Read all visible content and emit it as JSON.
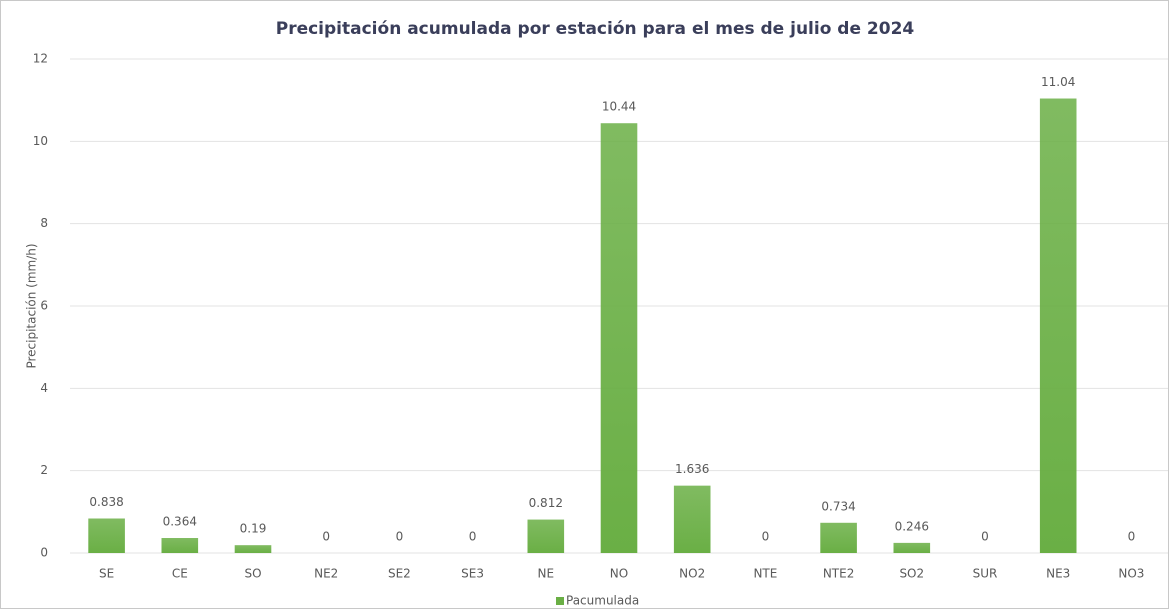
{
  "chart_data": {
    "type": "bar",
    "title": "Precipitación acumulada por estación para el mes de julio de 2024",
    "y_label": "Precipitación (mm/h)",
    "categories": [
      "SE",
      "CE",
      "SO",
      "NE2",
      "SE2",
      "SE3",
      "NE",
      "NO",
      "NO2",
      "NTE",
      "NTE2",
      "SO2",
      "SUR",
      "NE3",
      "NO3"
    ],
    "series": [
      {
        "name": "Pacumulada",
        "color": "#6aaf45",
        "values": [
          0.838,
          0.364,
          0.19,
          0,
          0,
          0,
          0.812,
          10.44,
          1.636,
          0,
          0.734,
          0.246,
          0,
          11.04,
          0
        ]
      }
    ],
    "ylim": [
      0,
      12
    ],
    "yticks": [
      0,
      2,
      4,
      6,
      8,
      10,
      12
    ],
    "grid": true,
    "legend": "bottom"
  }
}
